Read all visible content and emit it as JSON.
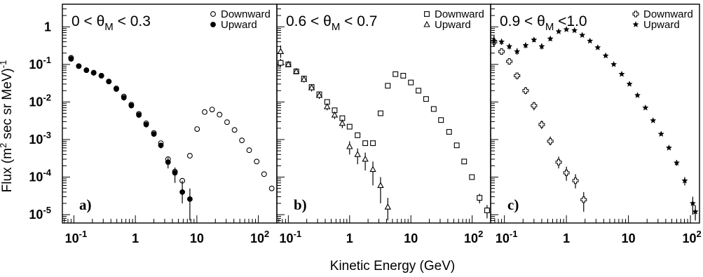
{
  "figure": {
    "xlabel": "Kinetic Energy (GeV)",
    "ylabel_parts": [
      "Flux (m",
      "2",
      " sec sr MeV)",
      "-1"
    ]
  },
  "chart_data": [
    {
      "type": "scatter",
      "tag": "a)",
      "condition": {
        "pre": "0 < θ",
        "sub": "M",
        "post": " < 0.3"
      },
      "x_scale": "log",
      "y_scale": "log",
      "xlim": [
        0.065,
        200
      ],
      "ylim": [
        6e-06,
        4
      ],
      "x_ticks": [
        {
          "v": 0.1,
          "base": "10",
          "exp": "-1"
        },
        {
          "v": 1,
          "base": "1",
          "exp": ""
        },
        {
          "v": 10,
          "base": "10",
          "exp": ""
        },
        {
          "v": 100,
          "base": "10",
          "exp": "2"
        }
      ],
      "y_ticks": [
        {
          "v": 1,
          "base": "1",
          "exp": ""
        },
        {
          "v": 0.1,
          "base": "10",
          "exp": "-1"
        },
        {
          "v": 0.01,
          "base": "10",
          "exp": "-2"
        },
        {
          "v": 0.001,
          "base": "10",
          "exp": "-3"
        },
        {
          "v": 0.0001,
          "base": "10",
          "exp": "-4"
        },
        {
          "v": 1e-05,
          "base": "10",
          "exp": "-5"
        }
      ],
      "legend_position": "top-right",
      "series": [
        {
          "name": "Downward",
          "marker": "circle-open",
          "x": [
            0.09,
            0.12,
            0.16,
            0.21,
            0.28,
            0.37,
            0.49,
            0.65,
            0.86,
            1.14,
            1.5,
            2.0,
            2.6,
            3.4,
            4.4,
            5.8,
            7.7,
            10.1,
            13.4,
            17.7,
            23.4,
            31,
            41,
            54,
            71,
            94,
            124,
            165
          ],
          "y": [
            0.15,
            0.09,
            0.07,
            0.06,
            0.05,
            0.035,
            0.023,
            0.014,
            0.0085,
            0.0048,
            0.0027,
            0.0015,
            0.0008,
            0.0003,
            0.00014,
            8e-05,
            0.00037,
            0.0019,
            0.0054,
            0.0063,
            0.0046,
            0.0029,
            0.0018,
            0.00095,
            0.00052,
            0.00026,
            0.00012,
            5e-05
          ]
        },
        {
          "name": "Upward",
          "marker": "circle-filled",
          "x": [
            0.09,
            0.12,
            0.16,
            0.21,
            0.28,
            0.37,
            0.49,
            0.65,
            0.86,
            1.14,
            1.5,
            2.0,
            2.6,
            3.4,
            4.4,
            5.8,
            7.7
          ],
          "y": [
            0.14,
            0.09,
            0.07,
            0.06,
            0.05,
            0.035,
            0.022,
            0.013,
            0.008,
            0.0045,
            0.0025,
            0.0014,
            0.0007,
            0.00025,
            0.00013,
            4e-05,
            2.6e-05
          ],
          "err_low": [
            0.12,
            0.08,
            0.06,
            0.05,
            0.042,
            0.03,
            0.019,
            0.011,
            0.0068,
            0.0038,
            0.0021,
            0.0012,
            0.00058,
            0.00017,
            7e-05,
            2e-05,
            7e-06
          ],
          "err_high": [
            0.17,
            0.1,
            0.08,
            0.07,
            0.058,
            0.04,
            0.025,
            0.015,
            0.0092,
            0.0052,
            0.0029,
            0.0016,
            0.00082,
            0.00033,
            0.00018,
            8e-05,
            5e-05
          ]
        }
      ]
    },
    {
      "type": "scatter",
      "tag": "b)",
      "condition": {
        "pre": "0.6 < θ",
        "sub": "M",
        "post": " < 0.7"
      },
      "x_scale": "log",
      "y_scale": "log",
      "xlim": [
        0.065,
        200
      ],
      "ylim": [
        6e-06,
        4
      ],
      "x_ticks": [
        {
          "v": 0.1,
          "base": "10",
          "exp": "-1"
        },
        {
          "v": 1,
          "base": "1",
          "exp": ""
        },
        {
          "v": 10,
          "base": "10",
          "exp": ""
        },
        {
          "v": 100,
          "base": "10",
          "exp": "2"
        }
      ],
      "y_ticks": [],
      "legend_position": "top-right",
      "series": [
        {
          "name": "Downward",
          "marker": "square-open",
          "x": [
            0.075,
            0.1,
            0.135,
            0.18,
            0.24,
            0.32,
            0.43,
            0.57,
            0.76,
            1.0,
            1.35,
            1.8,
            2.4,
            3.2,
            4.2,
            5.6,
            7.5,
            10,
            13.3,
            17.7,
            23.6,
            31,
            42,
            56,
            74,
            99,
            132,
            175
          ],
          "y": [
            0.11,
            0.1,
            0.065,
            0.042,
            0.025,
            0.016,
            0.01,
            0.006,
            0.0037,
            0.0022,
            0.0013,
            0.0008,
            0.0008,
            0.005,
            0.027,
            0.055,
            0.05,
            0.033,
            0.02,
            0.012,
            0.0065,
            0.0033,
            0.0016,
            0.0007,
            0.00026,
            0.0001,
            2.8e-05,
            1.3e-05
          ],
          "err_low": [
            0.085,
            0.09,
            0.058,
            0.038,
            0.023,
            0.014,
            0.009,
            0.0054,
            0.0033,
            0.0019,
            0.0011,
            0.00068,
            0.0007,
            0.0046,
            0.025,
            0.052,
            0.047,
            0.031,
            0.019,
            0.011,
            0.006,
            0.003,
            0.0014,
            0.0006,
            0.00022,
            8.5e-05,
            2e-05,
            8e-06
          ],
          "err_high": [
            0.14,
            0.11,
            0.072,
            0.046,
            0.027,
            0.018,
            0.011,
            0.0066,
            0.0041,
            0.0025,
            0.0015,
            0.00092,
            0.0009,
            0.0054,
            0.029,
            0.058,
            0.053,
            0.035,
            0.021,
            0.013,
            0.007,
            0.0036,
            0.0018,
            0.0008,
            0.0003,
            0.000115,
            3.6e-05,
            1.8e-05
          ]
        },
        {
          "name": "Upward",
          "marker": "triangle-open",
          "x": [
            0.075,
            0.1,
            0.135,
            0.18,
            0.24,
            0.32,
            0.43,
            0.57,
            0.76,
            1.0,
            1.35,
            1.8,
            2.4,
            3.2,
            4.2
          ],
          "y": [
            0.22,
            0.1,
            0.065,
            0.04,
            0.024,
            0.015,
            0.0075,
            0.0045,
            0.0027,
            0.00065,
            0.0004,
            0.0003,
            0.00016,
            6e-05,
            1.6e-05
          ],
          "err_low": [
            0.15,
            0.085,
            0.055,
            0.033,
            0.019,
            0.012,
            0.006,
            0.0035,
            0.002,
            0.0004,
            0.00022,
            0.00015,
            6e-05,
            2e-05,
            7e-06
          ],
          "err_high": [
            0.32,
            0.12,
            0.075,
            0.047,
            0.029,
            0.018,
            0.009,
            0.0055,
            0.0034,
            0.0009,
            0.00058,
            0.00045,
            0.00026,
            0.0001,
            2.8e-05
          ]
        }
      ]
    },
    {
      "type": "scatter",
      "tag": "c)",
      "condition": {
        "pre": "0.9 < θ",
        "sub": "M",
        "post": " <1.0"
      },
      "x_scale": "log",
      "y_scale": "log",
      "xlim": [
        0.06,
        140
      ],
      "ylim": [
        6e-06,
        4
      ],
      "x_ticks": [
        {
          "v": 0.1,
          "base": "10",
          "exp": "-1"
        },
        {
          "v": 1,
          "base": "1",
          "exp": ""
        },
        {
          "v": 10,
          "base": "10",
          "exp": ""
        },
        {
          "v": 100,
          "base": "10",
          "exp": "2"
        }
      ],
      "y_ticks": [],
      "legend_position": "top-right",
      "series": [
        {
          "name": "Downward",
          "marker": "cross-open",
          "x": [
            0.068,
            0.09,
            0.12,
            0.16,
            0.22,
            0.3,
            0.4,
            0.55,
            0.75,
            1.0,
            1.4,
            1.9
          ],
          "y": [
            0.4,
            0.22,
            0.12,
            0.05,
            0.02,
            0.008,
            0.0025,
            0.0009,
            0.00025,
            0.00013,
            8e-05,
            2.5e-05
          ],
          "err_low": [
            0.3,
            0.19,
            0.1,
            0.04,
            0.016,
            0.006,
            0.0019,
            0.0007,
            0.00017,
            8e-05,
            5e-05,
            1.2e-05
          ],
          "err_high": [
            0.55,
            0.26,
            0.14,
            0.06,
            0.025,
            0.01,
            0.0032,
            0.0012,
            0.00035,
            0.00019,
            0.00012,
            4e-05
          ]
        },
        {
          "name": "Upward",
          "marker": "star-filled",
          "x": [
            0.068,
            0.09,
            0.12,
            0.16,
            0.22,
            0.3,
            0.4,
            0.55,
            0.75,
            1.0,
            1.35,
            1.8,
            2.4,
            3.2,
            4.3,
            5.8,
            7.8,
            10.4,
            14,
            18.8,
            25,
            33.7,
            45,
            60,
            81,
            109,
            120
          ],
          "y": [
            0.42,
            0.4,
            0.3,
            0.22,
            0.32,
            0.45,
            0.3,
            0.48,
            0.75,
            0.85,
            0.8,
            0.6,
            0.42,
            0.28,
            0.17,
            0.1,
            0.055,
            0.03,
            0.015,
            0.007,
            0.0032,
            0.0014,
            0.0006,
            0.00024,
            8e-05,
            2e-05,
            1.2e-05
          ],
          "err_low": [
            0.3,
            0.33,
            0.25,
            0.18,
            0.27,
            0.39,
            0.25,
            0.42,
            0.68,
            0.78,
            0.73,
            0.55,
            0.39,
            0.26,
            0.16,
            0.094,
            0.052,
            0.028,
            0.014,
            0.0066,
            0.003,
            0.0013,
            0.00055,
            0.0002,
            6e-05,
            1e-05,
            7e-06
          ],
          "err_high": [
            0.58,
            0.48,
            0.36,
            0.27,
            0.38,
            0.52,
            0.36,
            0.55,
            0.82,
            0.92,
            0.87,
            0.66,
            0.45,
            0.3,
            0.18,
            0.106,
            0.058,
            0.032,
            0.016,
            0.0075,
            0.0034,
            0.0015,
            0.00065,
            0.00028,
            0.0001,
            3e-05,
            1.8e-05
          ]
        }
      ]
    }
  ]
}
